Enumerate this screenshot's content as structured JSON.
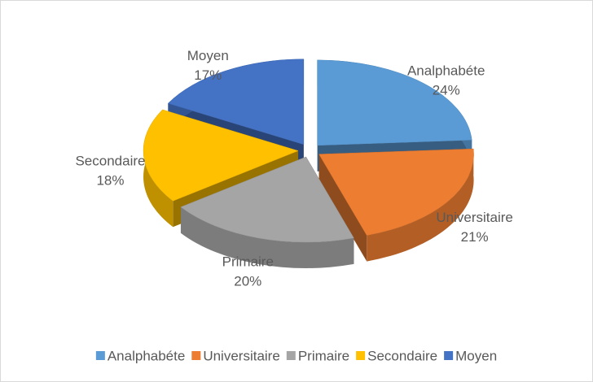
{
  "chart_data": {
    "type": "pie",
    "categories": [
      "Analphabéte",
      "Universitaire",
      "Primaire",
      "Secondaire",
      "Moyen"
    ],
    "values": [
      24,
      21,
      20,
      18,
      17
    ],
    "value_labels": [
      "24%",
      "21%",
      "20%",
      "18%",
      "17%"
    ],
    "colors": [
      "#5b9bd5",
      "#ed7d31",
      "#a5a5a5",
      "#ffc000",
      "#4472c4"
    ],
    "legend": "bottom"
  }
}
